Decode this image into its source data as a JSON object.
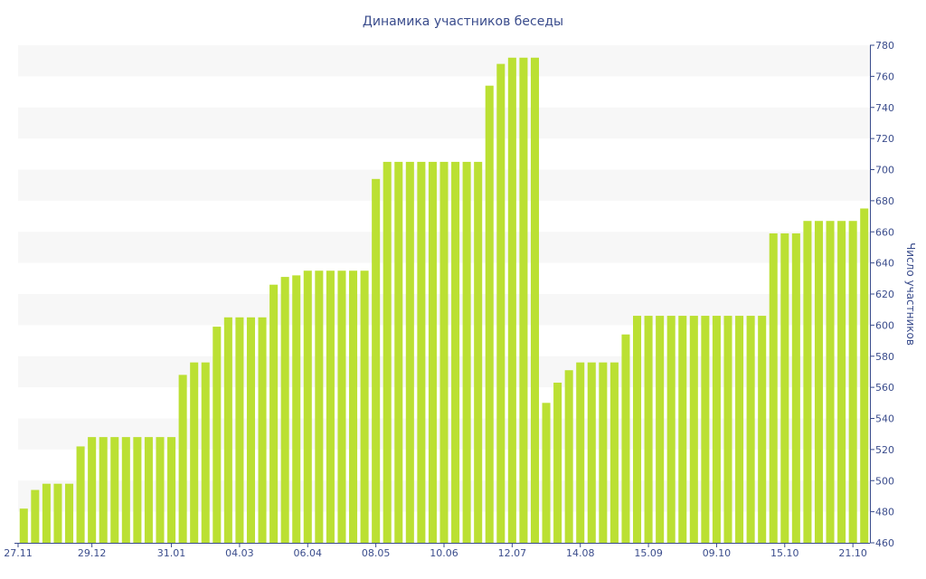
{
  "chart_data": {
    "type": "bar",
    "title": "Динамика участников беседы",
    "ylabel": "Число участников",
    "xlabel": "",
    "ylim": [
      460,
      780
    ],
    "yticks": [
      460,
      480,
      500,
      520,
      540,
      560,
      580,
      600,
      620,
      640,
      660,
      680,
      700,
      720,
      740,
      760,
      780
    ],
    "y_axis_position": "right",
    "grid": "alternating-bands",
    "x_tick_labels": [
      "27.11",
      "29.12",
      "31.01",
      "04.03",
      "06.04",
      "08.05",
      "10.06",
      "12.07",
      "14.08",
      "15.09",
      "09.10",
      "15.10",
      "21.10"
    ],
    "x_tick_indices": [
      0,
      6,
      13,
      19,
      25,
      31,
      37,
      43,
      49,
      55,
      61,
      67,
      73
    ],
    "values": [
      482,
      494,
      498,
      498,
      498,
      522,
      528,
      528,
      528,
      528,
      528,
      528,
      528,
      528,
      568,
      576,
      576,
      599,
      605,
      605,
      605,
      605,
      626,
      631,
      632,
      635,
      635,
      635,
      635,
      635,
      635,
      694,
      705,
      705,
      705,
      705,
      705,
      705,
      705,
      705,
      705,
      754,
      768,
      772,
      772,
      772,
      550,
      563,
      571,
      576,
      576,
      576,
      576,
      594,
      606,
      606,
      606,
      606,
      606,
      606,
      606,
      606,
      606,
      606,
      606,
      606,
      659,
      659,
      659,
      667,
      667,
      667,
      667,
      667,
      675
    ],
    "colors": {
      "bar": "#bbe033",
      "band": "#f7f7f7",
      "axis": "#3a4c8c",
      "text": "#3a4c8c"
    }
  }
}
